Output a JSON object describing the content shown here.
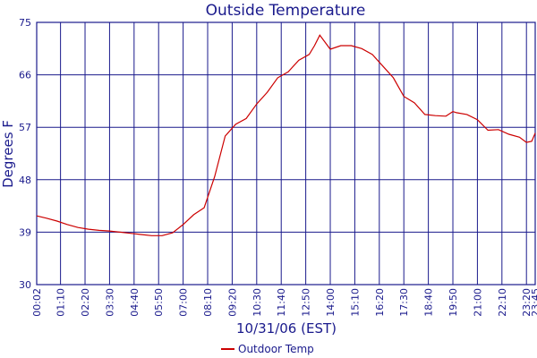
{
  "chart_data": {
    "type": "line",
    "title": "Outside Temperature",
    "xlabel": "10/31/06 (EST)",
    "ylabel": "Degrees F",
    "ylim": [
      30,
      75
    ],
    "y_ticks": [
      "30",
      "39",
      "48",
      "57",
      "66",
      "75"
    ],
    "x_ticks": [
      "00:02",
      "01:10",
      "02:20",
      "03:30",
      "04:40",
      "05:50",
      "07:00",
      "08:10",
      "09:20",
      "10:30",
      "11:40",
      "12:50",
      "14:00",
      "15:10",
      "16:20",
      "17:30",
      "18:40",
      "19:50",
      "21:00",
      "22:10",
      "23:20",
      "23:45"
    ],
    "grid": true,
    "legend_position": "bottom-center",
    "series": [
      {
        "name": "Outdoor Temp",
        "color": "#cc0000",
        "x": [
          "00:02",
          "00:30",
          "01:00",
          "01:30",
          "02:00",
          "02:30",
          "03:00",
          "03:30",
          "04:00",
          "04:30",
          "05:00",
          "05:30",
          "06:00",
          "06:30",
          "07:00",
          "07:30",
          "08:00",
          "08:30",
          "09:00",
          "09:30",
          "10:00",
          "10:30",
          "11:00",
          "11:30",
          "12:00",
          "12:30",
          "13:00",
          "13:15",
          "13:30",
          "14:00",
          "14:30",
          "15:00",
          "15:30",
          "16:00",
          "16:30",
          "17:00",
          "17:30",
          "18:00",
          "18:30",
          "19:00",
          "19:30",
          "19:50",
          "20:00",
          "20:30",
          "21:00",
          "21:30",
          "22:00",
          "22:30",
          "23:00",
          "23:20",
          "23:35",
          "23:45"
        ],
        "values": [
          41.8,
          41.4,
          40.9,
          40.3,
          39.8,
          39.5,
          39.3,
          39.2,
          39.0,
          38.8,
          38.6,
          38.4,
          38.4,
          38.9,
          40.3,
          42.0,
          43.2,
          48.5,
          55.5,
          57.5,
          58.5,
          61.0,
          63.0,
          65.5,
          66.5,
          68.5,
          69.5,
          71.0,
          72.8,
          70.4,
          71.0,
          71.0,
          70.5,
          69.5,
          67.5,
          65.5,
          62.3,
          61.2,
          59.2,
          59.0,
          58.9,
          59.7,
          59.5,
          59.2,
          58.3,
          56.5,
          56.6,
          55.8,
          55.3,
          54.4,
          54.6,
          56.0
        ]
      }
    ]
  }
}
